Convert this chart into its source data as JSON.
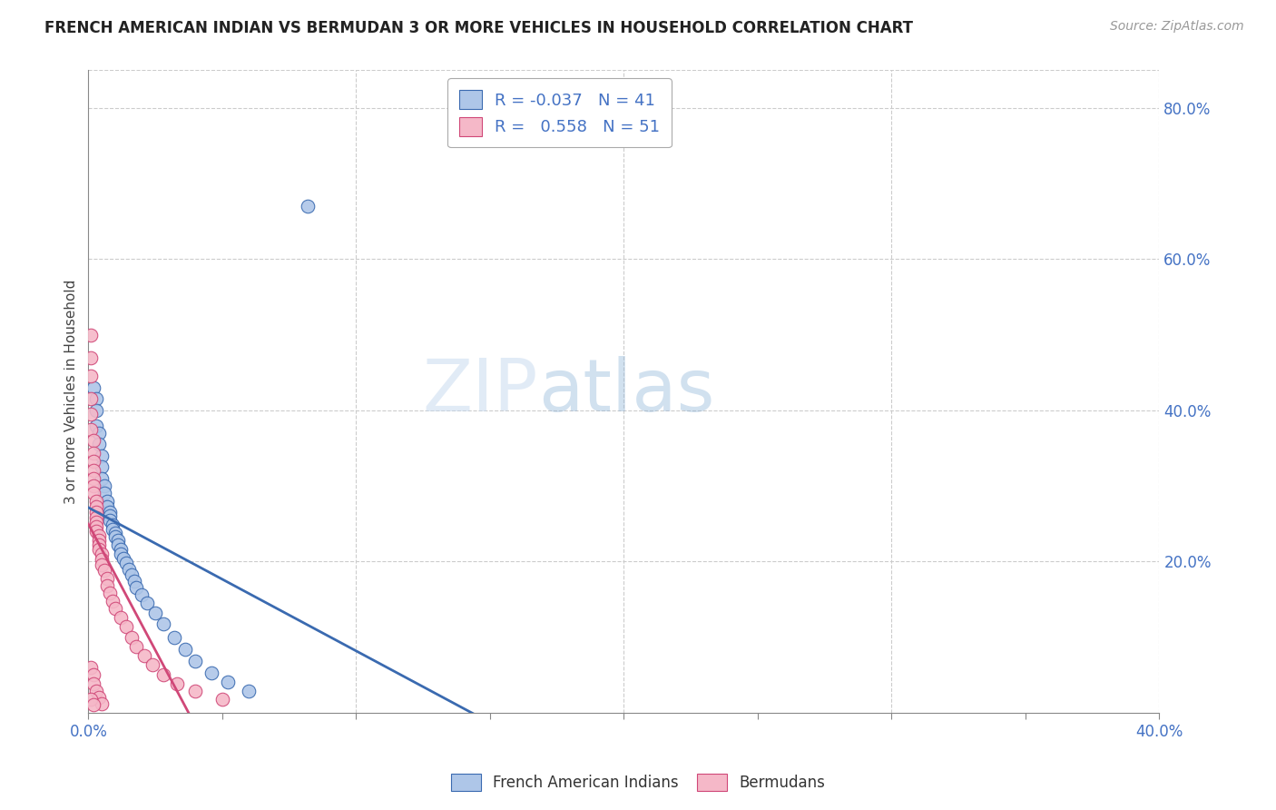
{
  "title": "FRENCH AMERICAN INDIAN VS BERMUDAN 3 OR MORE VEHICLES IN HOUSEHOLD CORRELATION CHART",
  "source": "Source: ZipAtlas.com",
  "ylabel": "3 or more Vehicles in Household",
  "xlim": [
    0.0,
    0.4
  ],
  "ylim": [
    0.0,
    0.85
  ],
  "watermark_zip": "ZIP",
  "watermark_atlas": "atlas",
  "legend_blue_label": "French American Indians",
  "legend_pink_label": "Bermudans",
  "blue_R": "-0.037",
  "blue_N": "41",
  "pink_R": "0.558",
  "pink_N": "51",
  "blue_color": "#aec6e8",
  "pink_color": "#f5b8c8",
  "blue_line_color": "#3a6ab0",
  "pink_line_color": "#d04878",
  "blue_scatter": [
    [
      0.002,
      0.43
    ],
    [
      0.003,
      0.415
    ],
    [
      0.003,
      0.4
    ],
    [
      0.003,
      0.38
    ],
    [
      0.004,
      0.37
    ],
    [
      0.004,
      0.355
    ],
    [
      0.005,
      0.34
    ],
    [
      0.005,
      0.325
    ],
    [
      0.005,
      0.31
    ],
    [
      0.006,
      0.3
    ],
    [
      0.006,
      0.29
    ],
    [
      0.007,
      0.28
    ],
    [
      0.007,
      0.272
    ],
    [
      0.008,
      0.265
    ],
    [
      0.008,
      0.26
    ],
    [
      0.008,
      0.255
    ],
    [
      0.009,
      0.248
    ],
    [
      0.009,
      0.242
    ],
    [
      0.01,
      0.238
    ],
    [
      0.01,
      0.233
    ],
    [
      0.011,
      0.228
    ],
    [
      0.011,
      0.222
    ],
    [
      0.012,
      0.216
    ],
    [
      0.012,
      0.21
    ],
    [
      0.013,
      0.204
    ],
    [
      0.014,
      0.198
    ],
    [
      0.015,
      0.19
    ],
    [
      0.016,
      0.182
    ],
    [
      0.017,
      0.174
    ],
    [
      0.018,
      0.166
    ],
    [
      0.02,
      0.156
    ],
    [
      0.022,
      0.145
    ],
    [
      0.025,
      0.132
    ],
    [
      0.028,
      0.118
    ],
    [
      0.032,
      0.1
    ],
    [
      0.036,
      0.084
    ],
    [
      0.04,
      0.068
    ],
    [
      0.046,
      0.052
    ],
    [
      0.052,
      0.04
    ],
    [
      0.06,
      0.028
    ],
    [
      0.082,
      0.67
    ]
  ],
  "pink_scatter": [
    [
      0.001,
      0.5
    ],
    [
      0.001,
      0.47
    ],
    [
      0.001,
      0.445
    ],
    [
      0.001,
      0.415
    ],
    [
      0.001,
      0.395
    ],
    [
      0.001,
      0.375
    ],
    [
      0.002,
      0.36
    ],
    [
      0.002,
      0.343
    ],
    [
      0.002,
      0.332
    ],
    [
      0.002,
      0.32
    ],
    [
      0.002,
      0.31
    ],
    [
      0.002,
      0.3
    ],
    [
      0.002,
      0.29
    ],
    [
      0.003,
      0.28
    ],
    [
      0.003,
      0.272
    ],
    [
      0.003,
      0.265
    ],
    [
      0.003,
      0.258
    ],
    [
      0.003,
      0.252
    ],
    [
      0.003,
      0.246
    ],
    [
      0.003,
      0.24
    ],
    [
      0.004,
      0.234
    ],
    [
      0.004,
      0.228
    ],
    [
      0.004,
      0.222
    ],
    [
      0.004,
      0.216
    ],
    [
      0.005,
      0.21
    ],
    [
      0.005,
      0.203
    ],
    [
      0.005,
      0.196
    ],
    [
      0.006,
      0.188
    ],
    [
      0.007,
      0.178
    ],
    [
      0.007,
      0.168
    ],
    [
      0.008,
      0.158
    ],
    [
      0.009,
      0.148
    ],
    [
      0.01,
      0.138
    ],
    [
      0.012,
      0.126
    ],
    [
      0.014,
      0.114
    ],
    [
      0.016,
      0.1
    ],
    [
      0.018,
      0.088
    ],
    [
      0.021,
      0.075
    ],
    [
      0.024,
      0.063
    ],
    [
      0.028,
      0.05
    ],
    [
      0.033,
      0.038
    ],
    [
      0.04,
      0.028
    ],
    [
      0.05,
      0.018
    ],
    [
      0.001,
      0.06
    ],
    [
      0.002,
      0.05
    ],
    [
      0.002,
      0.038
    ],
    [
      0.003,
      0.028
    ],
    [
      0.004,
      0.02
    ],
    [
      0.005,
      0.012
    ],
    [
      0.001,
      0.018
    ],
    [
      0.002,
      0.01
    ]
  ]
}
